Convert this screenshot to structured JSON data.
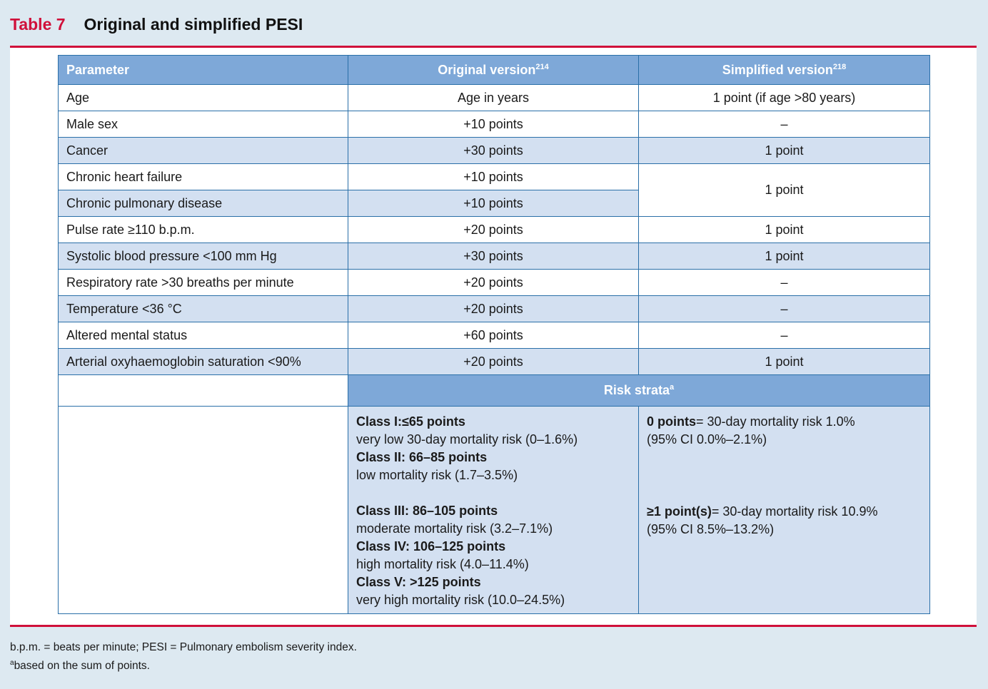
{
  "title": {
    "number": "Table 7",
    "text": "Original and simplified PESI"
  },
  "header": {
    "parameter": "Parameter",
    "original": "Original version",
    "original_ref": "214",
    "simplified": "Simplified version",
    "simplified_ref": "218"
  },
  "rows": [
    {
      "param": "Age",
      "original": "Age in years",
      "simplified": "1 point (if age >80 years)"
    },
    {
      "param": "Male sex",
      "original": "+10 points",
      "simplified": "–"
    },
    {
      "param": "Cancer",
      "original": "+30 points",
      "simplified": "1 point"
    },
    {
      "param": "Chronic heart failure",
      "original": "+10 points",
      "simplified": "1 point"
    },
    {
      "param": "Chronic pulmonary disease",
      "original": "+10 points"
    },
    {
      "param": "Pulse rate ≥110 b.p.m.",
      "original": "+20 points",
      "simplified": "1 point"
    },
    {
      "param": "Systolic blood pressure <100 mm Hg",
      "original": "+30 points",
      "simplified": "1 point"
    },
    {
      "param": "Respiratory rate >30 breaths per minute",
      "original": "+20 points",
      "simplified": "–"
    },
    {
      "param": "Temperature <36 °C",
      "original": "+20 points",
      "simplified": "–"
    },
    {
      "param": "Altered mental status",
      "original": "+60 points",
      "simplified": "–"
    },
    {
      "param": "Arterial oxyhaemoglobin saturation <90%",
      "original": "+20 points",
      "simplified": "1 point"
    }
  ],
  "risk": {
    "heading": "Risk strata",
    "heading_sup": "a",
    "original": [
      {
        "label": "Class I:≤65 points",
        "desc": "very low 30-day mortality risk (0–1.6%)"
      },
      {
        "label": "Class II: 66–85 points",
        "desc": "low mortality risk (1.7–3.5%)"
      },
      {
        "label": "Class III: 86–105 points",
        "desc": "moderate mortality risk (3.2–7.1%)"
      },
      {
        "label": "Class IV: 106–125 points",
        "desc": "high mortality risk (4.0–11.4%)"
      },
      {
        "label": "Class V: >125 points",
        "desc": "very high mortality risk (10.0–24.5%)"
      }
    ],
    "simplified": [
      {
        "label": "0 points",
        "desc": "= 30-day mortality risk 1.0%",
        "ci": "(95% CI 0.0%–2.1%)"
      },
      {
        "label": "≥1 point(s)",
        "desc": "= 30-day mortality risk 10.9%",
        "ci": "(95% CI 8.5%–13.2%)"
      }
    ]
  },
  "footnotes": {
    "abbrev": "b.p.m. = beats per minute; PESI = Pulmonary embolism severity index.",
    "a_sup": "a",
    "a_text": "based on the sum of points."
  }
}
